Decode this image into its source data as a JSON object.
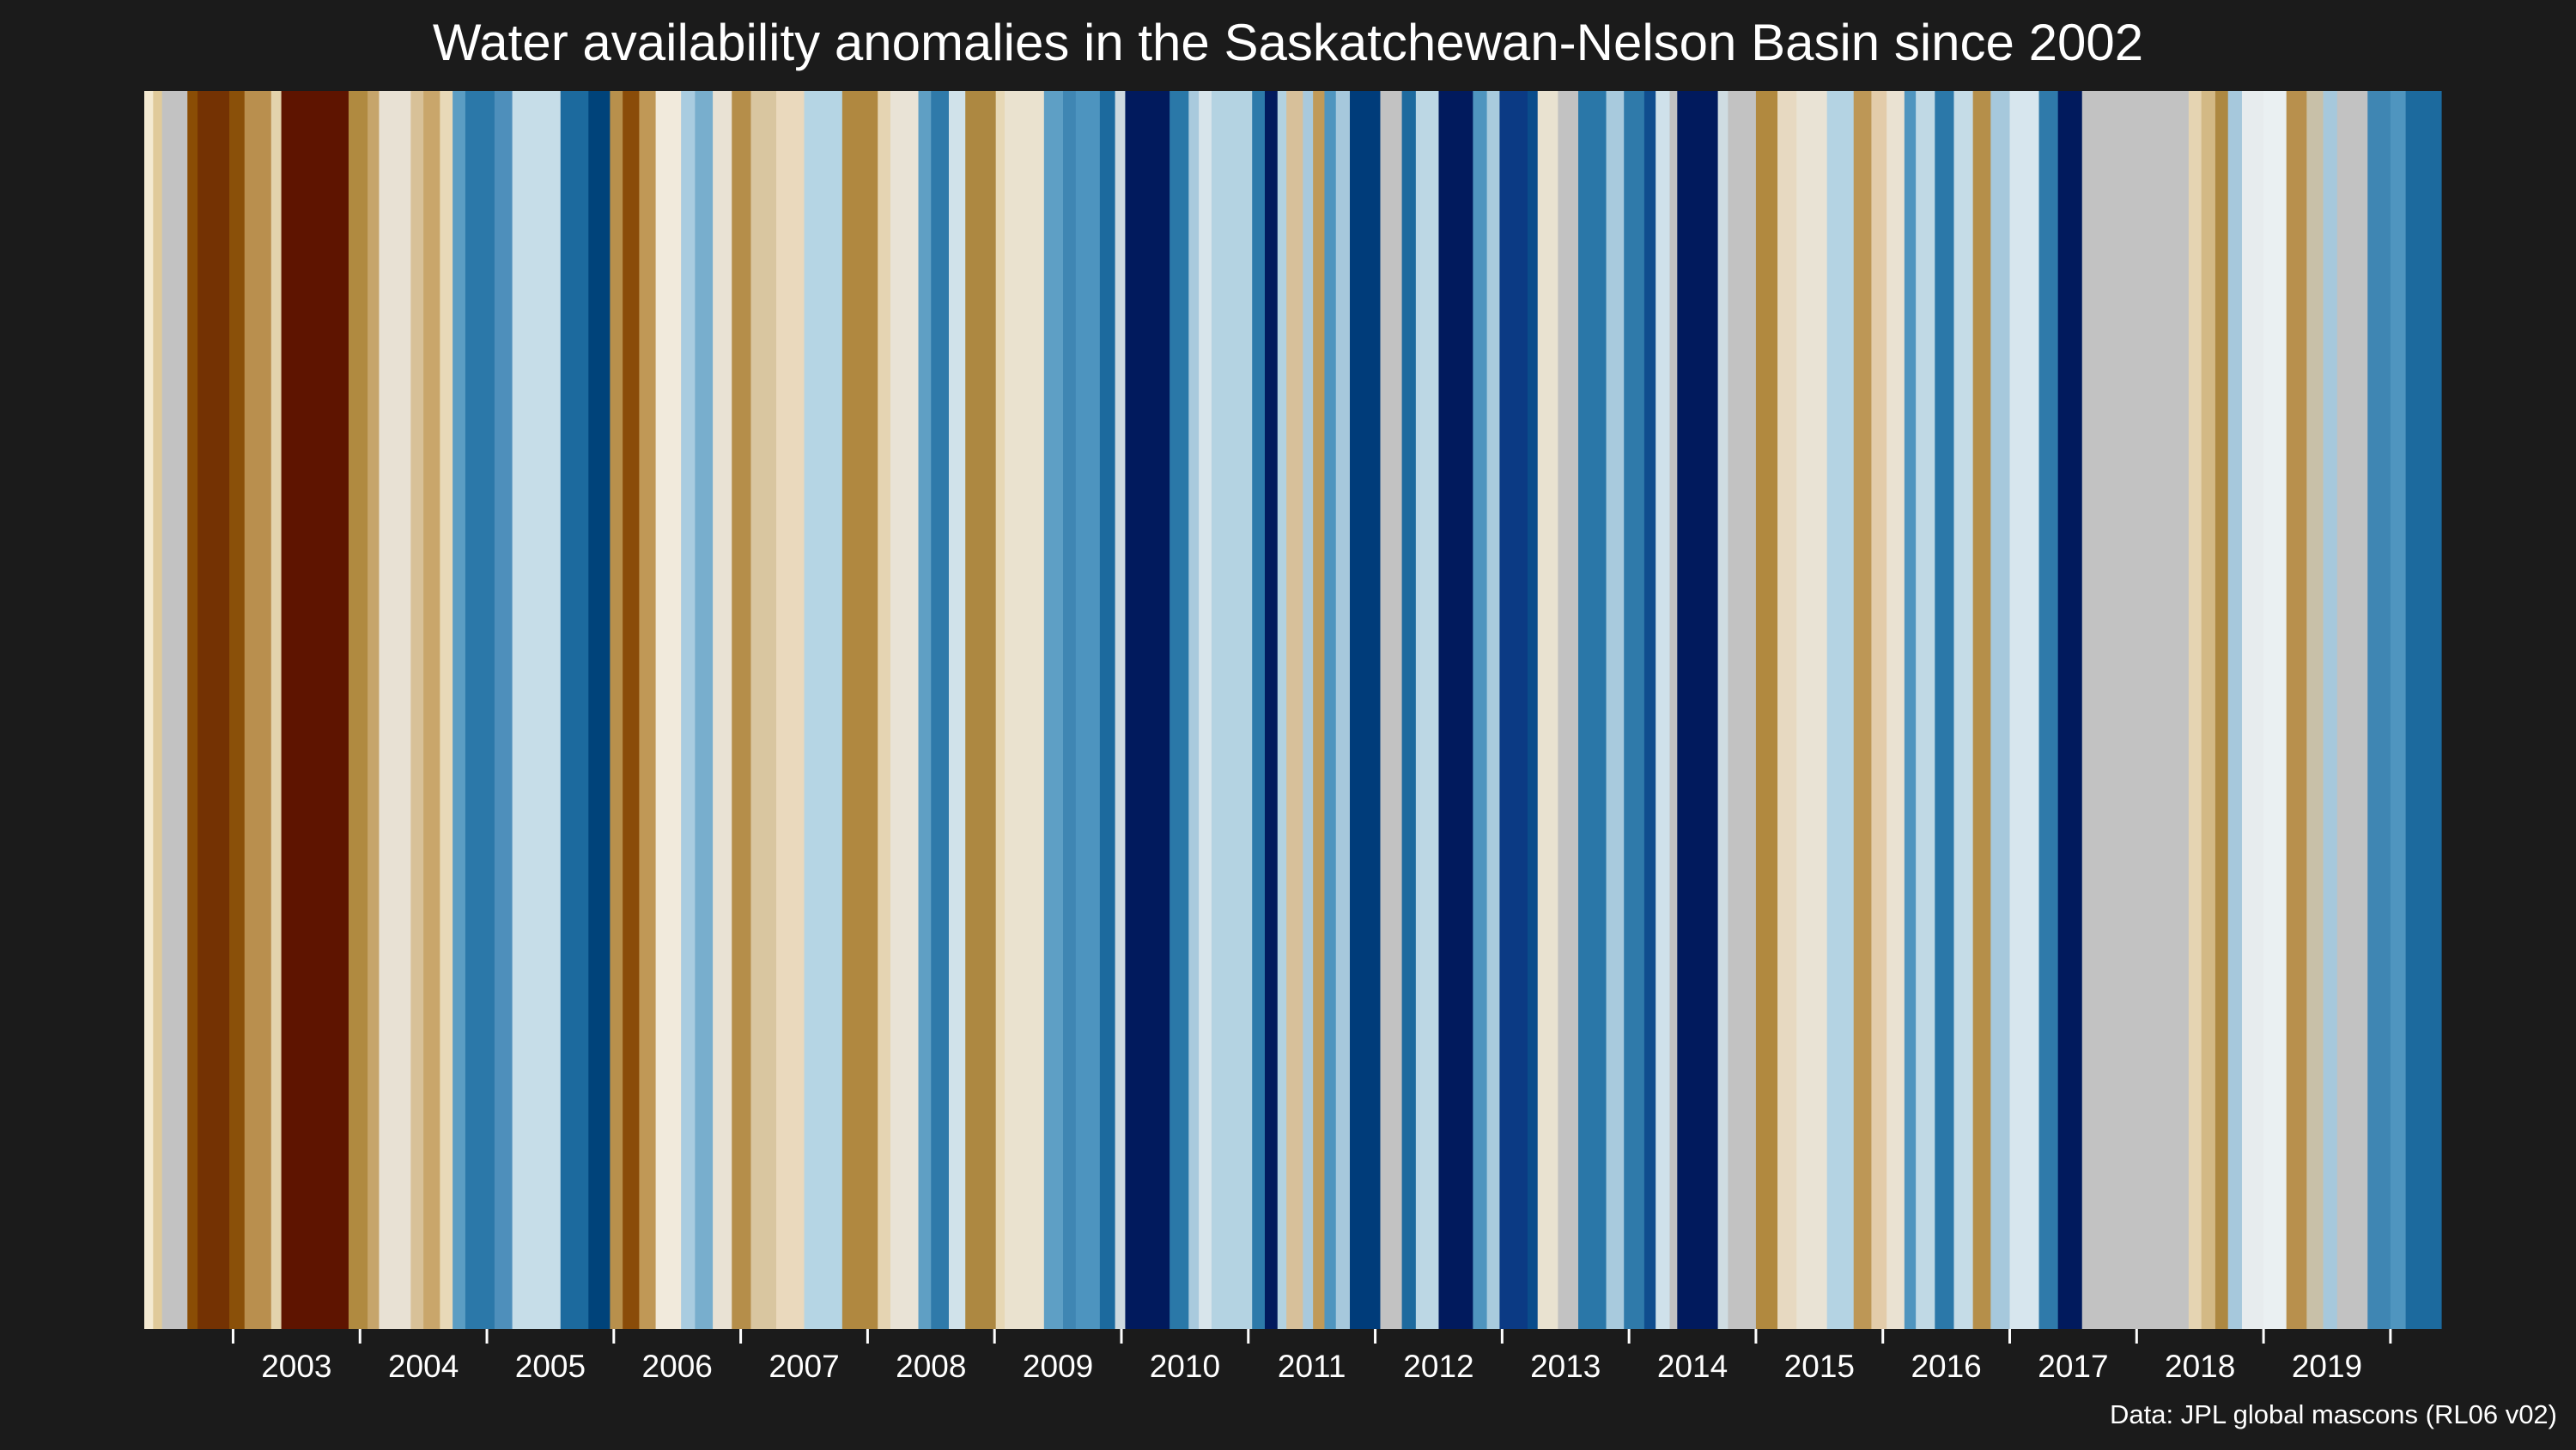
{
  "chart_data": {
    "type": "bar",
    "title": "Water availability anomalies in the Saskatchewan-Nelson Basin since 2002",
    "caption": "Data: JPL global mascons (RL06 v02)",
    "xlabel": "",
    "ylabel": "",
    "x_range": [
      2002.3,
      2020.4
    ],
    "tick_labels": [
      "2003",
      "2004",
      "2005",
      "2006",
      "2007",
      "2008",
      "2009",
      "2010",
      "2011",
      "2012",
      "2013",
      "2014",
      "2015",
      "2016",
      "2017",
      "2018",
      "2019"
    ],
    "tick_positions": [
      2003,
      2004,
      2005,
      2006,
      2007,
      2008,
      2009,
      2010,
      2011,
      2012,
      2013,
      2014,
      2015,
      2016,
      2017,
      2018,
      2019
    ],
    "legend": "none",
    "grid": false,
    "missing_color": "#c2c2c2",
    "stripes": [
      {
        "start": 2002.3,
        "end": 2002.37,
        "color": "#f4ead2"
      },
      {
        "start": 2002.37,
        "end": 2002.44,
        "color": "#e0ca9a"
      },
      {
        "start": 2002.44,
        "end": 2002.64,
        "color": "#c2c2c2"
      },
      {
        "start": 2002.64,
        "end": 2002.72,
        "color": "#8a4d05"
      },
      {
        "start": 2002.72,
        "end": 2002.97,
        "color": "#743203"
      },
      {
        "start": 2002.97,
        "end": 2003.09,
        "color": "#8a5009"
      },
      {
        "start": 2003.09,
        "end": 2003.3,
        "color": "#b98f4e"
      },
      {
        "start": 2003.3,
        "end": 2003.38,
        "color": "#e3d3ac"
      },
      {
        "start": 2003.38,
        "end": 2003.91,
        "color": "#5e1400"
      },
      {
        "start": 2003.91,
        "end": 2004.06,
        "color": "#b08a40"
      },
      {
        "start": 2004.06,
        "end": 2004.15,
        "color": "#c6a56b"
      },
      {
        "start": 2004.15,
        "end": 2004.4,
        "color": "#e8e1d4"
      },
      {
        "start": 2004.4,
        "end": 2004.5,
        "color": "#d8c198"
      },
      {
        "start": 2004.5,
        "end": 2004.63,
        "color": "#c9a66b"
      },
      {
        "start": 2004.63,
        "end": 2004.73,
        "color": "#e8d9b8"
      },
      {
        "start": 2004.73,
        "end": 2004.83,
        "color": "#5b9dc3"
      },
      {
        "start": 2004.83,
        "end": 2005.06,
        "color": "#2b78a9"
      },
      {
        "start": 2005.06,
        "end": 2005.2,
        "color": "#4e8fbb"
      },
      {
        "start": 2005.2,
        "end": 2005.58,
        "color": "#c6dde8"
      },
      {
        "start": 2005.58,
        "end": 2005.8,
        "color": "#1c6a9e"
      },
      {
        "start": 2005.8,
        "end": 2005.97,
        "color": "#00437a"
      },
      {
        "start": 2005.97,
        "end": 2006.07,
        "color": "#b8904c"
      },
      {
        "start": 2006.07,
        "end": 2006.2,
        "color": "#8a4c09"
      },
      {
        "start": 2006.2,
        "end": 2006.33,
        "color": "#c09856"
      },
      {
        "start": 2006.33,
        "end": 2006.53,
        "color": "#f1eadc"
      },
      {
        "start": 2006.53,
        "end": 2006.64,
        "color": "#a9cce0"
      },
      {
        "start": 2006.64,
        "end": 2006.78,
        "color": "#78aecd"
      },
      {
        "start": 2006.78,
        "end": 2006.93,
        "color": "#e9e2d4"
      },
      {
        "start": 2006.93,
        "end": 2007.08,
        "color": "#b58e4a"
      },
      {
        "start": 2007.08,
        "end": 2007.28,
        "color": "#d9c6a0"
      },
      {
        "start": 2007.28,
        "end": 2007.5,
        "color": "#ead9bd"
      },
      {
        "start": 2007.5,
        "end": 2007.8,
        "color": "#b5d5e4"
      },
      {
        "start": 2007.8,
        "end": 2008.08,
        "color": "#b08840"
      },
      {
        "start": 2008.08,
        "end": 2008.18,
        "color": "#e5d4b2"
      },
      {
        "start": 2008.18,
        "end": 2008.4,
        "color": "#e9e3d6"
      },
      {
        "start": 2008.4,
        "end": 2008.5,
        "color": "#5f9fc4"
      },
      {
        "start": 2008.5,
        "end": 2008.64,
        "color": "#2f7aaa"
      },
      {
        "start": 2008.64,
        "end": 2008.77,
        "color": "#d0e2ea"
      },
      {
        "start": 2008.77,
        "end": 2009.01,
        "color": "#ad8841"
      },
      {
        "start": 2009.01,
        "end": 2009.08,
        "color": "#e7d8b6"
      },
      {
        "start": 2009.08,
        "end": 2009.39,
        "color": "#eae2cf"
      },
      {
        "start": 2009.39,
        "end": 2009.54,
        "color": "#5e9fc5"
      },
      {
        "start": 2009.54,
        "end": 2009.64,
        "color": "#3f86b3"
      },
      {
        "start": 2009.64,
        "end": 2009.83,
        "color": "#4d94bf"
      },
      {
        "start": 2009.83,
        "end": 2009.95,
        "color": "#1c6a9e"
      },
      {
        "start": 2009.95,
        "end": 2010.03,
        "color": "#cdd9df"
      },
      {
        "start": 2010.03,
        "end": 2010.38,
        "color": "#011a5d"
      },
      {
        "start": 2010.38,
        "end": 2010.53,
        "color": "#2a78a8"
      },
      {
        "start": 2010.53,
        "end": 2010.61,
        "color": "#a9cadd"
      },
      {
        "start": 2010.61,
        "end": 2010.71,
        "color": "#d8e5eb"
      },
      {
        "start": 2010.71,
        "end": 2011.03,
        "color": "#b4d3e2"
      },
      {
        "start": 2011.03,
        "end": 2011.13,
        "color": "#2d7aaa"
      },
      {
        "start": 2011.13,
        "end": 2011.23,
        "color": "#011a5d"
      },
      {
        "start": 2011.23,
        "end": 2011.3,
        "color": "#b2d2e1"
      },
      {
        "start": 2011.3,
        "end": 2011.43,
        "color": "#d7c09a"
      },
      {
        "start": 2011.43,
        "end": 2011.51,
        "color": "#a8c9dc"
      },
      {
        "start": 2011.51,
        "end": 2011.6,
        "color": "#c09a58"
      },
      {
        "start": 2011.6,
        "end": 2011.69,
        "color": "#4f95bf"
      },
      {
        "start": 2011.69,
        "end": 2011.8,
        "color": "#a6c8dc"
      },
      {
        "start": 2011.8,
        "end": 2012.04,
        "color": "#003c7a"
      },
      {
        "start": 2012.04,
        "end": 2012.21,
        "color": "#c2c2c2"
      },
      {
        "start": 2012.21,
        "end": 2012.32,
        "color": "#1d6a9e"
      },
      {
        "start": 2012.32,
        "end": 2012.5,
        "color": "#bcd7e4"
      },
      {
        "start": 2012.5,
        "end": 2012.77,
        "color": "#011a5d"
      },
      {
        "start": 2012.77,
        "end": 2012.88,
        "color": "#4f95bf"
      },
      {
        "start": 2012.88,
        "end": 2012.98,
        "color": "#a9cbdd"
      },
      {
        "start": 2012.98,
        "end": 2013.2,
        "color": "#0b3a84"
      },
      {
        "start": 2013.2,
        "end": 2013.28,
        "color": "#0a4c8b"
      },
      {
        "start": 2013.28,
        "end": 2013.44,
        "color": "#e9e2d0"
      },
      {
        "start": 2013.44,
        "end": 2013.6,
        "color": "#c2c2c2"
      },
      {
        "start": 2013.6,
        "end": 2013.82,
        "color": "#2a77a8"
      },
      {
        "start": 2013.82,
        "end": 2013.96,
        "color": "#a8cadd"
      },
      {
        "start": 2013.96,
        "end": 2014.12,
        "color": "#2f7aaa"
      },
      {
        "start": 2014.12,
        "end": 2014.21,
        "color": "#0f4d8e"
      },
      {
        "start": 2014.21,
        "end": 2014.32,
        "color": "#cfe1ea"
      },
      {
        "start": 2014.32,
        "end": 2014.38,
        "color": "#c2c2c2"
      },
      {
        "start": 2014.38,
        "end": 2014.7,
        "color": "#011a5d"
      },
      {
        "start": 2014.7,
        "end": 2014.78,
        "color": "#cfdce2"
      },
      {
        "start": 2014.78,
        "end": 2015.0,
        "color": "#c2c2c2"
      },
      {
        "start": 2015.0,
        "end": 2015.17,
        "color": "#b1893f"
      },
      {
        "start": 2015.17,
        "end": 2015.32,
        "color": "#e7d9c1"
      },
      {
        "start": 2015.32,
        "end": 2015.56,
        "color": "#e9e3d5"
      },
      {
        "start": 2015.56,
        "end": 2015.77,
        "color": "#b4d3e3"
      },
      {
        "start": 2015.77,
        "end": 2015.91,
        "color": "#bd9756"
      },
      {
        "start": 2015.91,
        "end": 2016.03,
        "color": "#e3ccaa"
      },
      {
        "start": 2016.03,
        "end": 2016.17,
        "color": "#eae2d2"
      },
      {
        "start": 2016.17,
        "end": 2016.26,
        "color": "#4f95bf"
      },
      {
        "start": 2016.26,
        "end": 2016.41,
        "color": "#c0d9e5"
      },
      {
        "start": 2016.41,
        "end": 2016.56,
        "color": "#2b78a9"
      },
      {
        "start": 2016.56,
        "end": 2016.71,
        "color": "#c5dce7"
      },
      {
        "start": 2016.71,
        "end": 2016.85,
        "color": "#b58f4a"
      },
      {
        "start": 2016.85,
        "end": 2017.0,
        "color": "#a6c8dc"
      },
      {
        "start": 2017.0,
        "end": 2017.23,
        "color": "#d7e6ee"
      },
      {
        "start": 2017.23,
        "end": 2017.38,
        "color": "#2f7aaa"
      },
      {
        "start": 2017.38,
        "end": 2017.57,
        "color": "#011a5d"
      },
      {
        "start": 2017.57,
        "end": 2018.41,
        "color": "#c2c2c2"
      },
      {
        "start": 2018.41,
        "end": 2018.51,
        "color": "#e5d4b2"
      },
      {
        "start": 2018.51,
        "end": 2018.62,
        "color": "#d3b985"
      },
      {
        "start": 2018.62,
        "end": 2018.72,
        "color": "#ad8841"
      },
      {
        "start": 2018.72,
        "end": 2018.83,
        "color": "#a6c8dc"
      },
      {
        "start": 2018.83,
        "end": 2019.0,
        "color": "#e7ecee"
      },
      {
        "start": 2019.0,
        "end": 2019.18,
        "color": "#eaf0f2"
      },
      {
        "start": 2019.18,
        "end": 2019.34,
        "color": "#b8904d"
      },
      {
        "start": 2019.34,
        "end": 2019.47,
        "color": "#c8c0a8"
      },
      {
        "start": 2019.47,
        "end": 2019.58,
        "color": "#a6c8dc"
      },
      {
        "start": 2019.58,
        "end": 2019.82,
        "color": "#c2c2c2"
      },
      {
        "start": 2019.82,
        "end": 2020.0,
        "color": "#3f86b3"
      },
      {
        "start": 2020.0,
        "end": 2020.12,
        "color": "#4f95bf"
      },
      {
        "start": 2020.12,
        "end": 2020.4,
        "color": "#1c6a9e"
      }
    ]
  },
  "colors": {
    "background": "#1b1b1b",
    "text": "#ffffff",
    "tick": "#ffffff"
  }
}
